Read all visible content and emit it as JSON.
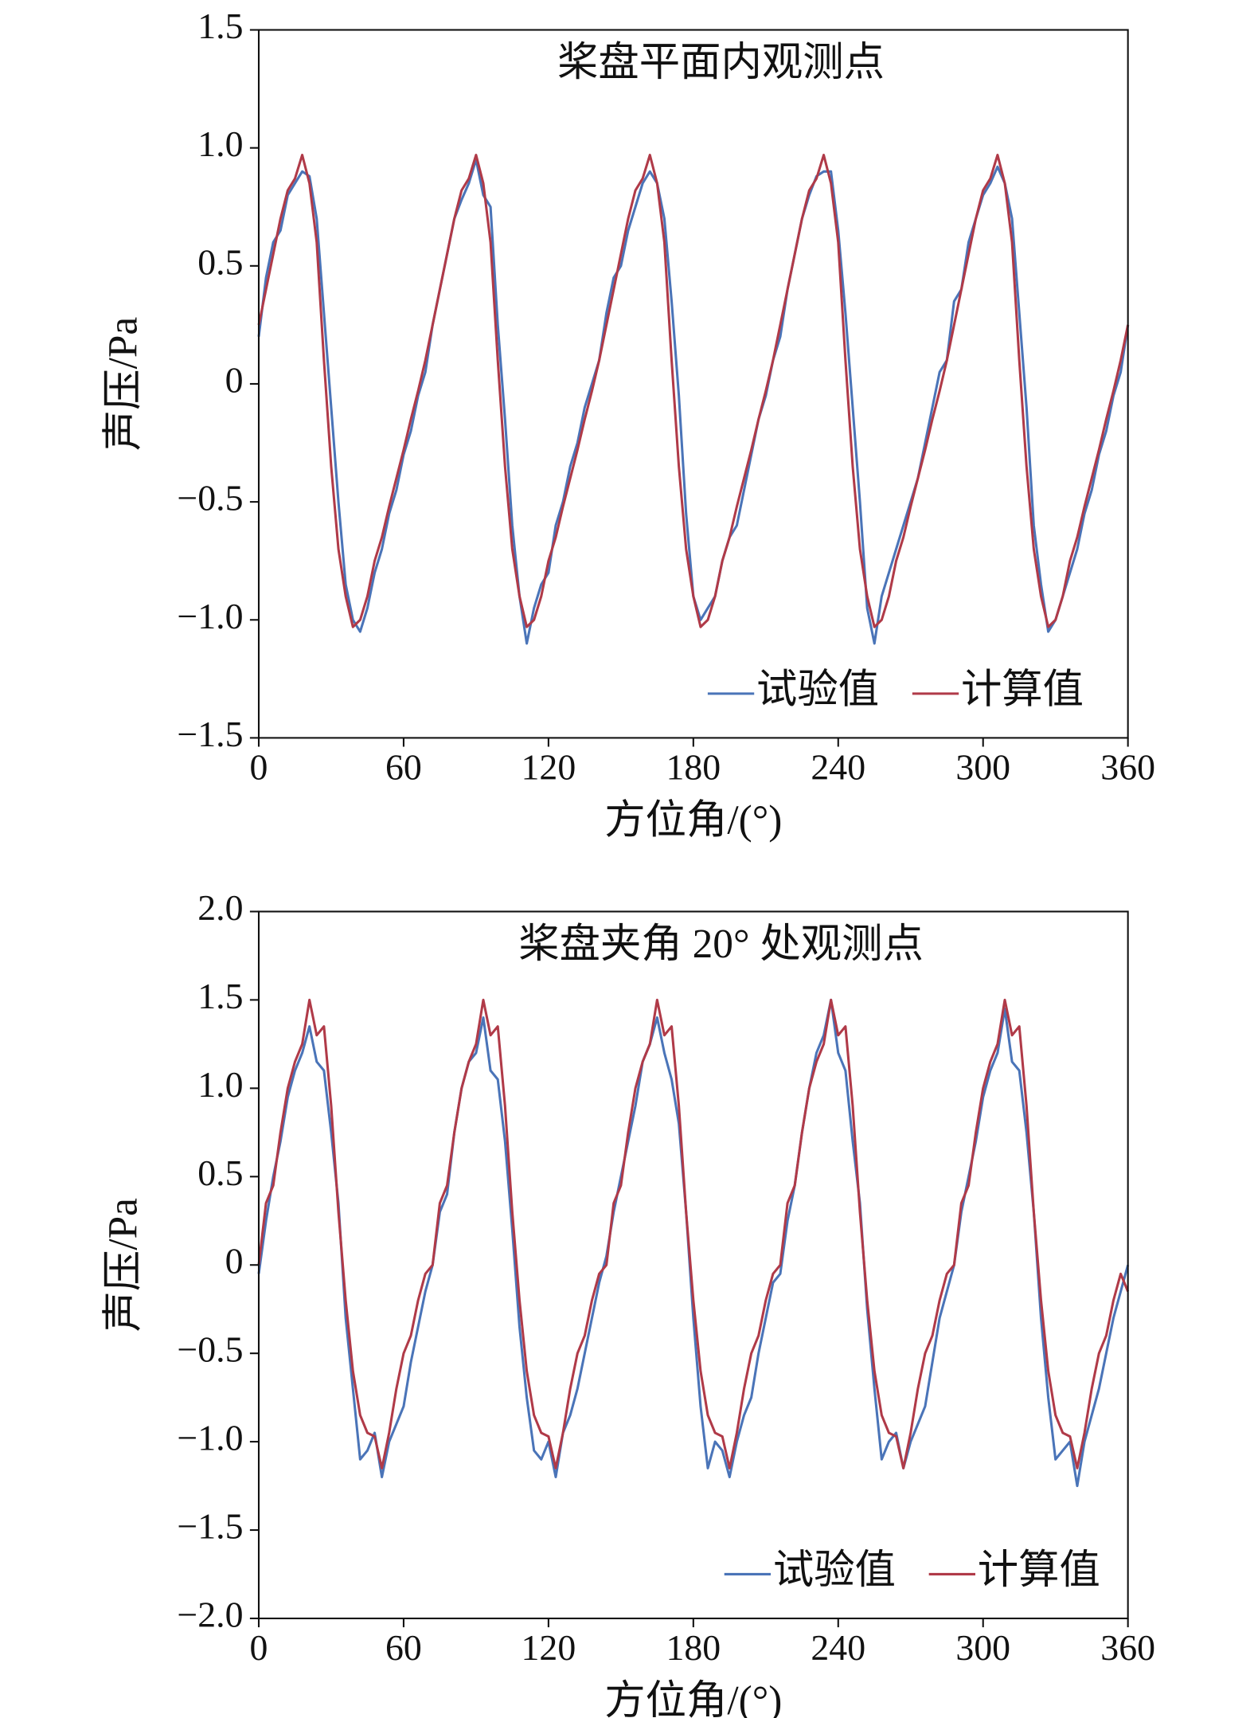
{
  "chart_data": [
    {
      "type": "line",
      "title": "桨盘平面内观测点",
      "xlabel": "方位角/(°)",
      "ylabel": "声压/Pa",
      "x": [
        0,
        3,
        6,
        9,
        12,
        15,
        18,
        21,
        24,
        27,
        30,
        33,
        36,
        39,
        42,
        45,
        48,
        51,
        54,
        57,
        60,
        63,
        66,
        69,
        72,
        75,
        78,
        81,
        84,
        87,
        90,
        93,
        96,
        99,
        102,
        105,
        108,
        111,
        114,
        117,
        120,
        123,
        126,
        129,
        132,
        135,
        138,
        141,
        144,
        147,
        150,
        153,
        156,
        159,
        162,
        165,
        168,
        171,
        174,
        177,
        180,
        183,
        186,
        189,
        192,
        195,
        198,
        201,
        204,
        207,
        210,
        213,
        216,
        219,
        222,
        225,
        228,
        231,
        234,
        237,
        240,
        243,
        246,
        249,
        252,
        255,
        258,
        261,
        264,
        267,
        270,
        273,
        276,
        279,
        282,
        285,
        288,
        291,
        294,
        297,
        300,
        303,
        306,
        309,
        312,
        315,
        318,
        321,
        324,
        327,
        330,
        333,
        336,
        339,
        342,
        345,
        348,
        351,
        354,
        357,
        360
      ],
      "series": [
        {
          "name": "试验值",
          "color": "#4a74b8",
          "values": [
            0.2,
            0.45,
            0.6,
            0.65,
            0.8,
            0.85,
            0.9,
            0.88,
            0.7,
            0.3,
            -0.1,
            -0.5,
            -0.85,
            -1.0,
            -1.05,
            -0.95,
            -0.8,
            -0.7,
            -0.55,
            -0.45,
            -0.3,
            -0.2,
            -0.05,
            0.05,
            0.25,
            0.4,
            0.55,
            0.7,
            0.78,
            0.85,
            0.95,
            0.8,
            0.75,
            0.25,
            -0.15,
            -0.6,
            -0.9,
            -1.1,
            -0.95,
            -0.85,
            -0.8,
            -0.6,
            -0.5,
            -0.35,
            -0.25,
            -0.1,
            0.0,
            0.1,
            0.3,
            0.45,
            0.5,
            0.65,
            0.75,
            0.85,
            0.9,
            0.85,
            0.7,
            0.35,
            -0.05,
            -0.55,
            -0.9,
            -1.0,
            -0.95,
            -0.9,
            -0.75,
            -0.65,
            -0.6,
            -0.45,
            -0.3,
            -0.15,
            -0.05,
            0.1,
            0.2,
            0.4,
            0.55,
            0.7,
            0.8,
            0.88,
            0.9,
            0.9,
            0.65,
            0.3,
            -0.1,
            -0.5,
            -0.95,
            -1.1,
            -0.9,
            -0.8,
            -0.7,
            -0.6,
            -0.5,
            -0.4,
            -0.25,
            -0.1,
            0.05,
            0.1,
            0.35,
            0.4,
            0.6,
            0.7,
            0.8,
            0.85,
            0.92,
            0.85,
            0.7,
            0.3,
            -0.1,
            -0.6,
            -0.85,
            -1.05,
            -1.0,
            -0.9,
            -0.8,
            -0.7,
            -0.55,
            -0.45,
            -0.3,
            -0.2,
            -0.05,
            0.05,
            0.25
          ]
        },
        {
          "name": "计算值",
          "color": "#b03a48",
          "values": [
            0.25,
            0.4,
            0.55,
            0.7,
            0.82,
            0.87,
            0.97,
            0.85,
            0.6,
            0.1,
            -0.35,
            -0.7,
            -0.9,
            -1.03,
            -1.0,
            -0.9,
            -0.75,
            -0.65,
            -0.52,
            -0.4,
            -0.28,
            -0.15,
            -0.03,
            0.1,
            0.25,
            0.4,
            0.55,
            0.7,
            0.82,
            0.87,
            0.97,
            0.85,
            0.6,
            0.1,
            -0.35,
            -0.7,
            -0.9,
            -1.03,
            -1.0,
            -0.9,
            -0.75,
            -0.65,
            -0.52,
            -0.4,
            -0.28,
            -0.15,
            -0.03,
            0.1,
            0.25,
            0.4,
            0.55,
            0.7,
            0.82,
            0.87,
            0.97,
            0.85,
            0.6,
            0.1,
            -0.35,
            -0.7,
            -0.9,
            -1.03,
            -1.0,
            -0.9,
            -0.75,
            -0.65,
            -0.52,
            -0.4,
            -0.28,
            -0.15,
            -0.03,
            0.1,
            0.25,
            0.4,
            0.55,
            0.7,
            0.82,
            0.87,
            0.97,
            0.85,
            0.6,
            0.1,
            -0.35,
            -0.7,
            -0.9,
            -1.03,
            -1.0,
            -0.9,
            -0.75,
            -0.65,
            -0.52,
            -0.4,
            -0.28,
            -0.15,
            -0.03,
            0.1,
            0.25,
            0.4,
            0.55,
            0.7,
            0.82,
            0.87,
            0.97,
            0.85,
            0.6,
            0.1,
            -0.35,
            -0.7,
            -0.9,
            -1.03,
            -1.0,
            -0.9,
            -0.75,
            -0.65,
            -0.52,
            -0.4,
            -0.28,
            -0.15,
            -0.03,
            0.1,
            0.25
          ]
        }
      ],
      "xlim": [
        0,
        360
      ],
      "xticks": [
        0,
        60,
        120,
        180,
        240,
        300,
        360
      ],
      "ylim": [
        -1.5,
        1.5
      ],
      "yticks": [
        1.5,
        {
          "value": 1.0,
          "label": "1.0"
        },
        0.5,
        0,
        {
          "value": -0.5,
          "label": "−0.5"
        },
        {
          "value": -1.0,
          "label": "−1.0"
        },
        {
          "value": -1.5,
          "label": "−1.5"
        }
      ],
      "legend": "lower right"
    },
    {
      "type": "line",
      "title": "桨盘夹角 20° 处观测点",
      "xlabel": "方位角/(°)",
      "ylabel": "声压/Pa",
      "x": [
        0,
        3,
        6,
        9,
        12,
        15,
        18,
        21,
        24,
        27,
        30,
        33,
        36,
        39,
        42,
        45,
        48,
        51,
        54,
        57,
        60,
        63,
        66,
        69,
        72,
        75,
        78,
        81,
        84,
        87,
        90,
        93,
        96,
        99,
        102,
        105,
        108,
        111,
        114,
        117,
        120,
        123,
        126,
        129,
        132,
        135,
        138,
        141,
        144,
        147,
        150,
        153,
        156,
        159,
        162,
        165,
        168,
        171,
        174,
        177,
        180,
        183,
        186,
        189,
        192,
        195,
        198,
        201,
        204,
        207,
        210,
        213,
        216,
        219,
        222,
        225,
        228,
        231,
        234,
        237,
        240,
        243,
        246,
        249,
        252,
        255,
        258,
        261,
        264,
        267,
        270,
        273,
        276,
        279,
        282,
        285,
        288,
        291,
        294,
        297,
        300,
        303,
        306,
        309,
        312,
        315,
        318,
        321,
        324,
        327,
        330,
        333,
        336,
        339,
        342,
        345,
        348,
        351,
        354,
        357,
        360
      ],
      "series": [
        {
          "name": "试验值",
          "color": "#4a74b8",
          "values": [
            -0.05,
            0.25,
            0.5,
            0.7,
            0.95,
            1.1,
            1.2,
            1.35,
            1.15,
            1.1,
            0.75,
            0.35,
            -0.3,
            -0.7,
            -1.1,
            -1.05,
            -0.95,
            -1.2,
            -1.0,
            -0.9,
            -0.8,
            -0.55,
            -0.35,
            -0.15,
            0.0,
            0.3,
            0.4,
            0.75,
            1.0,
            1.15,
            1.2,
            1.4,
            1.1,
            1.05,
            0.7,
            0.2,
            -0.35,
            -0.75,
            -1.05,
            -1.1,
            -1.0,
            -1.2,
            -0.95,
            -0.85,
            -0.7,
            -0.5,
            -0.3,
            -0.1,
            0.05,
            0.3,
            0.5,
            0.7,
            0.9,
            1.15,
            1.25,
            1.4,
            1.2,
            1.05,
            0.8,
            0.3,
            -0.3,
            -0.8,
            -1.15,
            -1.0,
            -1.05,
            -1.2,
            -1.0,
            -0.85,
            -0.75,
            -0.5,
            -0.3,
            -0.1,
            -0.05,
            0.25,
            0.45,
            0.75,
            1.0,
            1.2,
            1.3,
            1.5,
            1.2,
            1.1,
            0.7,
            0.35,
            -0.25,
            -0.7,
            -1.1,
            -1.0,
            -0.95,
            -1.15,
            -1.0,
            -0.9,
            -0.8,
            -0.55,
            -0.3,
            -0.15,
            0.0,
            0.3,
            0.5,
            0.7,
            0.95,
            1.1,
            1.2,
            1.45,
            1.15,
            1.1,
            0.75,
            0.3,
            -0.3,
            -0.75,
            -1.1,
            -1.05,
            -1.0,
            -1.25,
            -1.0,
            -0.85,
            -0.7,
            -0.5,
            -0.3,
            -0.15,
            0.0
          ]
        },
        {
          "name": "计算值",
          "color": "#b03a48",
          "values": [
            0.0,
            0.35,
            0.45,
            0.75,
            1.0,
            1.15,
            1.25,
            1.5,
            1.3,
            1.35,
            0.9,
            0.3,
            -0.2,
            -0.6,
            -0.85,
            -0.95,
            -0.97,
            -1.15,
            -0.95,
            -0.7,
            -0.5,
            -0.4,
            -0.2,
            -0.05,
            0.0,
            0.35,
            0.45,
            0.75,
            1.0,
            1.15,
            1.25,
            1.5,
            1.3,
            1.35,
            0.9,
            0.3,
            -0.2,
            -0.6,
            -0.85,
            -0.95,
            -0.97,
            -1.15,
            -0.95,
            -0.7,
            -0.5,
            -0.4,
            -0.2,
            -0.05,
            0.0,
            0.35,
            0.45,
            0.75,
            1.0,
            1.15,
            1.25,
            1.5,
            1.3,
            1.35,
            0.9,
            0.3,
            -0.2,
            -0.6,
            -0.85,
            -0.95,
            -0.97,
            -1.15,
            -0.95,
            -0.7,
            -0.5,
            -0.4,
            -0.2,
            -0.05,
            0.0,
            0.35,
            0.45,
            0.75,
            1.0,
            1.15,
            1.25,
            1.5,
            1.3,
            1.35,
            0.9,
            0.3,
            -0.2,
            -0.6,
            -0.85,
            -0.95,
            -0.97,
            -1.15,
            -0.95,
            -0.7,
            -0.5,
            -0.4,
            -0.2,
            -0.05,
            0.0,
            0.35,
            0.45,
            0.75,
            1.0,
            1.15,
            1.25,
            1.5,
            1.3,
            1.35,
            0.9,
            0.3,
            -0.2,
            -0.6,
            -0.85,
            -0.95,
            -0.97,
            -1.15,
            -0.95,
            -0.7,
            -0.5,
            -0.4,
            -0.2,
            -0.05,
            -0.15
          ]
        }
      ],
      "xlim": [
        0,
        360
      ],
      "xticks": [
        0,
        60,
        120,
        180,
        240,
        300,
        360
      ],
      "ylim": [
        -2.0,
        2.0
      ],
      "yticks": [
        {
          "value": 2.0,
          "label": "2.0"
        },
        1.5,
        {
          "value": 1.0,
          "label": "1.0"
        },
        0.5,
        0,
        {
          "value": -0.5,
          "label": "−0.5"
        },
        {
          "value": -1.0,
          "label": "−1.0"
        },
        {
          "value": -1.5,
          "label": "−1.5"
        },
        {
          "value": -2.0,
          "label": "−2.0"
        }
      ],
      "legend": "lower right"
    }
  ]
}
